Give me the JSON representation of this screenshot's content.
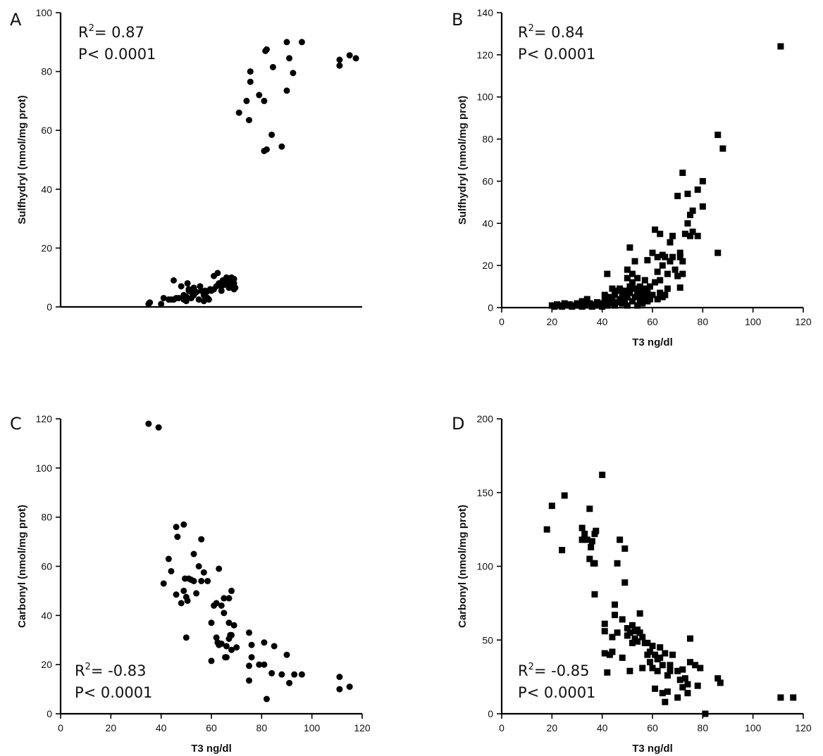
{
  "figure": {
    "background": "#ffffff",
    "mark_color": "#000000"
  },
  "chart_data": [
    {
      "panel": "A",
      "type": "scatter",
      "marker": "circle",
      "stats": {
        "r2_prefix": "R",
        "r2_sup": "2",
        "r2_value": "= 0.87",
        "p_value": "P< 0.0001"
      },
      "xlabel": "",
      "ylabel": "Sulfhydryl (nmol/mg prot)",
      "xlim": [
        0,
        120
      ],
      "ylim": [
        0,
        100
      ],
      "x_ticks": [],
      "y_ticks": [
        0,
        20,
        40,
        60,
        80,
        100
      ],
      "points": [
        [
          35,
          1
        ],
        [
          35.5,
          1.5
        ],
        [
          40,
          1
        ],
        [
          41,
          3
        ],
        [
          43,
          2.5
        ],
        [
          44,
          2.5
        ],
        [
          45,
          9
        ],
        [
          45,
          2.5
        ],
        [
          46,
          3
        ],
        [
          47,
          3
        ],
        [
          48,
          7
        ],
        [
          49,
          2.5
        ],
        [
          49,
          4
        ],
        [
          50,
          2
        ],
        [
          50,
          3.5
        ],
        [
          50.5,
          8
        ],
        [
          51,
          5.5
        ],
        [
          51,
          6
        ],
        [
          52,
          5
        ],
        [
          52,
          3
        ],
        [
          53,
          6
        ],
        [
          53,
          4
        ],
        [
          53,
          6.5
        ],
        [
          54,
          5
        ],
        [
          55,
          2.5
        ],
        [
          55.5,
          7
        ],
        [
          56,
          5.5
        ],
        [
          57,
          4
        ],
        [
          57,
          2
        ],
        [
          57.5,
          5.5
        ],
        [
          58,
          5
        ],
        [
          58.5,
          3
        ],
        [
          59,
          2.5
        ],
        [
          59.5,
          6
        ],
        [
          60,
          5.5
        ],
        [
          61,
          10.5
        ],
        [
          61,
          6
        ],
        [
          62,
          7
        ],
        [
          62.5,
          11.5
        ],
        [
          63,
          8
        ],
        [
          63,
          7.5
        ],
        [
          64,
          7
        ],
        [
          64,
          5.5
        ],
        [
          64.5,
          9
        ],
        [
          65,
          8.5
        ],
        [
          65,
          7.5
        ],
        [
          66,
          10
        ],
        [
          66,
          8
        ],
        [
          67,
          6.5
        ],
        [
          67,
          9
        ],
        [
          67.5,
          8
        ],
        [
          68,
          7.5
        ],
        [
          68,
          10
        ],
        [
          68.5,
          7.5
        ],
        [
          69,
          6
        ],
        [
          69,
          9.5
        ],
        [
          69,
          8
        ],
        [
          69.5,
          6.5
        ],
        [
          71,
          66
        ],
        [
          74,
          70
        ],
        [
          75,
          63.5
        ],
        [
          75.5,
          76.5
        ],
        [
          75.5,
          80
        ],
        [
          79,
          72
        ],
        [
          81,
          53
        ],
        [
          81,
          70
        ],
        [
          81.5,
          87
        ],
        [
          82,
          87.5
        ],
        [
          82,
          53.5
        ],
        [
          84,
          58.5
        ],
        [
          84.5,
          81.5
        ],
        [
          88,
          54.5
        ],
        [
          90,
          73.5
        ],
        [
          90,
          90
        ],
        [
          91,
          84.5
        ],
        [
          92.5,
          79.5
        ],
        [
          96,
          90
        ],
        [
          111,
          82
        ],
        [
          111,
          84
        ],
        [
          115,
          85.5
        ],
        [
          117.5,
          84.5
        ]
      ]
    },
    {
      "panel": "B",
      "type": "scatter",
      "marker": "square",
      "stats": {
        "r2_prefix": "R",
        "r2_sup": "2",
        "r2_value": "= 0.84",
        "p_value": "P< 0.0001"
      },
      "xlabel": "T3 ng/dl",
      "ylabel": "Sulfhydryl (nmol/mg prot)",
      "xlim": [
        0,
        120
      ],
      "ylim": [
        0,
        140
      ],
      "x_ticks": [
        0,
        20,
        40,
        60,
        80,
        100,
        120
      ],
      "y_ticks": [
        0,
        20,
        40,
        60,
        80,
        100,
        120,
        140
      ],
      "points": [
        [
          20,
          1
        ],
        [
          21,
          0.5
        ],
        [
          22,
          1.5
        ],
        [
          23,
          1
        ],
        [
          24,
          0.5
        ],
        [
          25,
          2
        ],
        [
          26,
          1
        ],
        [
          27,
          1.5
        ],
        [
          28,
          0.5
        ],
        [
          29,
          1
        ],
        [
          30,
          2
        ],
        [
          31,
          1
        ],
        [
          32,
          3
        ],
        [
          32,
          0.5
        ],
        [
          33,
          1.5
        ],
        [
          34,
          4
        ],
        [
          34,
          1
        ],
        [
          35,
          2
        ],
        [
          36,
          0.5
        ],
        [
          37,
          1.5
        ],
        [
          38,
          1
        ],
        [
          38,
          2.5
        ],
        [
          39,
          1
        ],
        [
          40,
          2
        ],
        [
          40,
          0.5
        ],
        [
          41,
          3
        ],
        [
          41,
          6
        ],
        [
          42,
          1
        ],
        [
          42,
          4
        ],
        [
          42,
          16
        ],
        [
          43,
          5
        ],
        [
          43,
          2
        ],
        [
          44,
          3
        ],
        [
          44,
          9
        ],
        [
          45,
          1
        ],
        [
          45,
          6
        ],
        [
          46,
          8
        ],
        [
          46,
          2.5
        ],
        [
          47,
          4
        ],
        [
          47,
          9
        ],
        [
          48,
          2
        ],
        [
          48,
          6
        ],
        [
          49,
          3
        ],
        [
          49,
          8
        ],
        [
          50,
          1
        ],
        [
          50,
          5
        ],
        [
          50,
          14
        ],
        [
          50,
          18
        ],
        [
          51,
          10
        ],
        [
          51,
          28.5
        ],
        [
          51,
          7
        ],
        [
          52,
          3
        ],
        [
          52,
          12
        ],
        [
          52,
          16
        ],
        [
          53,
          5
        ],
        [
          53,
          9
        ],
        [
          53,
          22
        ],
        [
          54,
          1
        ],
        [
          54,
          7
        ],
        [
          54,
          14
        ],
        [
          55,
          3
        ],
        [
          55,
          10
        ],
        [
          55,
          6
        ],
        [
          56,
          2
        ],
        [
          56,
          8
        ],
        [
          56,
          4
        ],
        [
          57,
          13
        ],
        [
          57,
          5
        ],
        [
          57,
          9
        ],
        [
          58,
          3
        ],
        [
          58,
          22.5
        ],
        [
          58,
          7
        ],
        [
          59,
          4
        ],
        [
          59,
          10
        ],
        [
          60,
          6
        ],
        [
          60,
          26
        ],
        [
          61,
          12
        ],
        [
          61,
          37
        ],
        [
          62,
          4
        ],
        [
          62,
          17
        ],
        [
          62,
          24
        ],
        [
          63,
          7
        ],
        [
          63,
          35
        ],
        [
          63,
          13
        ],
        [
          64,
          25
        ],
        [
          64,
          20
        ],
        [
          64,
          5
        ],
        [
          65,
          24
        ],
        [
          65,
          6
        ],
        [
          66,
          9
        ],
        [
          66,
          16
        ],
        [
          67,
          31
        ],
        [
          67,
          22
        ],
        [
          68,
          24
        ],
        [
          68,
          34
        ],
        [
          69,
          18
        ],
        [
          70,
          15
        ],
        [
          70,
          53
        ],
        [
          71,
          9.5
        ],
        [
          71,
          24
        ],
        [
          71,
          26
        ],
        [
          72,
          16
        ],
        [
          72,
          22
        ],
        [
          72,
          64
        ],
        [
          73,
          35
        ],
        [
          74,
          54
        ],
        [
          74,
          40
        ],
        [
          75,
          34
        ],
        [
          75,
          44
        ],
        [
          76,
          46
        ],
        [
          76,
          36
        ],
        [
          78,
          56
        ],
        [
          78,
          34
        ],
        [
          80,
          60
        ],
        [
          80,
          48
        ],
        [
          86,
          82
        ],
        [
          86,
          26
        ],
        [
          88,
          75.5
        ],
        [
          111,
          124
        ]
      ]
    },
    {
      "panel": "C",
      "type": "scatter",
      "marker": "circle",
      "stats": {
        "r2_prefix": "R",
        "r2_sup": "2",
        "r2_value": "= -0.83",
        "p_value": "P< 0.0001"
      },
      "xlabel": "T3 ng/dl",
      "ylabel": "Carbonyl (nmol/mg prot)",
      "xlim": [
        0,
        120
      ],
      "ylim": [
        0,
        120
      ],
      "x_ticks": [
        0,
        20,
        40,
        60,
        80,
        100,
        120
      ],
      "y_ticks": [
        0,
        20,
        40,
        60,
        80,
        100,
        120
      ],
      "points": [
        [
          35,
          118
        ],
        [
          39,
          116.5
        ],
        [
          41,
          53
        ],
        [
          43,
          63
        ],
        [
          44,
          58
        ],
        [
          46,
          48.5
        ],
        [
          46,
          76
        ],
        [
          46.5,
          72
        ],
        [
          48,
          45
        ],
        [
          49,
          77
        ],
        [
          49,
          50
        ],
        [
          49.5,
          55
        ],
        [
          50,
          31
        ],
        [
          50,
          47.5
        ],
        [
          50.5,
          46
        ],
        [
          51,
          55
        ],
        [
          52,
          54.5
        ],
        [
          53,
          65
        ],
        [
          53,
          54
        ],
        [
          54,
          49
        ],
        [
          55,
          60
        ],
        [
          56,
          71
        ],
        [
          56,
          54
        ],
        [
          57,
          57.5
        ],
        [
          58.5,
          54
        ],
        [
          60,
          37
        ],
        [
          60,
          21.5
        ],
        [
          61,
          44
        ],
        [
          62,
          45
        ],
        [
          62,
          31
        ],
        [
          62.5,
          29
        ],
        [
          63,
          28
        ],
        [
          63,
          59
        ],
        [
          64,
          28.5
        ],
        [
          64,
          44
        ],
        [
          65,
          41
        ],
        [
          65,
          47
        ],
        [
          65.5,
          23
        ],
        [
          66,
          23
        ],
        [
          66,
          27.5
        ],
        [
          67,
          37
        ],
        [
          67,
          30.5
        ],
        [
          67,
          47
        ],
        [
          67.5,
          32
        ],
        [
          68,
          32
        ],
        [
          68,
          26
        ],
        [
          68,
          50
        ],
        [
          69,
          36
        ],
        [
          70,
          27
        ],
        [
          75,
          13.5
        ],
        [
          75,
          19.5
        ],
        [
          75,
          33
        ],
        [
          76,
          28
        ],
        [
          76,
          23
        ],
        [
          79,
          20
        ],
        [
          81,
          29
        ],
        [
          81,
          20
        ],
        [
          82,
          6
        ],
        [
          84,
          16.5
        ],
        [
          85,
          27.5
        ],
        [
          88,
          16
        ],
        [
          90,
          24
        ],
        [
          91,
          12.5
        ],
        [
          93,
          16
        ],
        [
          96,
          16
        ],
        [
          111,
          10
        ],
        [
          111,
          15
        ],
        [
          115,
          11
        ]
      ]
    },
    {
      "panel": "D",
      "type": "scatter",
      "marker": "square",
      "stats": {
        "r2_prefix": "R",
        "r2_sup": "2",
        "r2_value": "= -0.85",
        "p_value": "P< 0.0001"
      },
      "xlabel": "T3 ng/dl",
      "ylabel": "Carbonyl (nmol/mg prot)",
      "xlim": [
        0,
        120
      ],
      "ylim": [
        0,
        200
      ],
      "x_ticks": [
        0,
        20,
        40,
        60,
        80,
        100,
        120
      ],
      "y_ticks": [
        0,
        50,
        100,
        150,
        200
      ],
      "points": [
        [
          18,
          125
        ],
        [
          20,
          141
        ],
        [
          24,
          111
        ],
        [
          25,
          148
        ],
        [
          32,
          126
        ],
        [
          32,
          118
        ],
        [
          33,
          122
        ],
        [
          34,
          118
        ],
        [
          35,
          105
        ],
        [
          35,
          139
        ],
        [
          35.5,
          113
        ],
        [
          36,
          117
        ],
        [
          37,
          81
        ],
        [
          37,
          102
        ],
        [
          37,
          122
        ],
        [
          37.5,
          124
        ],
        [
          36.5,
          102
        ],
        [
          40,
          162
        ],
        [
          41,
          56
        ],
        [
          41,
          41
        ],
        [
          41,
          61
        ],
        [
          42,
          28
        ],
        [
          43,
          40
        ],
        [
          44,
          52
        ],
        [
          44,
          42
        ],
        [
          45,
          74
        ],
        [
          45,
          67
        ],
        [
          46,
          102
        ],
        [
          46,
          55
        ],
        [
          47,
          118
        ],
        [
          48,
          64
        ],
        [
          48,
          38
        ],
        [
          49,
          89
        ],
        [
          49,
          112
        ],
        [
          50,
          58
        ],
        [
          50,
          53
        ],
        [
          51,
          29
        ],
        [
          51,
          55
        ],
        [
          52,
          48
        ],
        [
          52,
          60
        ],
        [
          53,
          51
        ],
        [
          53,
          56
        ],
        [
          54,
          49
        ],
        [
          54,
          57
        ],
        [
          55,
          55
        ],
        [
          55,
          68
        ],
        [
          56,
          31
        ],
        [
          56,
          52
        ],
        [
          57,
          48
        ],
        [
          58,
          48
        ],
        [
          58,
          40
        ],
        [
          59,
          35
        ],
        [
          59,
          42
        ],
        [
          60,
          31
        ],
        [
          60,
          46
        ],
        [
          61,
          17
        ],
        [
          61,
          40
        ],
        [
          62,
          37
        ],
        [
          62,
          29
        ],
        [
          63,
          45
        ],
        [
          63,
          38
        ],
        [
          64,
          14
        ],
        [
          64,
          33
        ],
        [
          65,
          8
        ],
        [
          65,
          41
        ],
        [
          66,
          15
        ],
        [
          66,
          26
        ],
        [
          67,
          29
        ],
        [
          67,
          33
        ],
        [
          68,
          40
        ],
        [
          70,
          11
        ],
        [
          70,
          29
        ],
        [
          71,
          23
        ],
        [
          72,
          30
        ],
        [
          72,
          18
        ],
        [
          73,
          24
        ],
        [
          74,
          20
        ],
        [
          74,
          14
        ],
        [
          75,
          51
        ],
        [
          75,
          35
        ],
        [
          77,
          33
        ],
        [
          78,
          19
        ],
        [
          79,
          31
        ],
        [
          81,
          0
        ],
        [
          86,
          24
        ],
        [
          87,
          21
        ],
        [
          111,
          11
        ],
        [
          116,
          11
        ]
      ]
    }
  ]
}
